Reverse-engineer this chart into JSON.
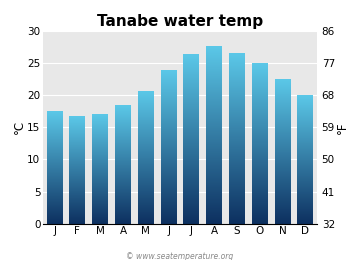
{
  "title": "Tanabe water temp",
  "months": [
    "J",
    "F",
    "M",
    "A",
    "M",
    "J",
    "J",
    "A",
    "S",
    "O",
    "N",
    "D"
  ],
  "values_c": [
    17.5,
    16.7,
    17.1,
    18.5,
    20.7,
    23.9,
    26.4,
    27.7,
    26.6,
    25.0,
    22.6,
    20.0
  ],
  "ylim_c": [
    0,
    30
  ],
  "yticks_c": [
    0,
    5,
    10,
    15,
    20,
    25,
    30
  ],
  "yticks_f": [
    32,
    41,
    50,
    59,
    68,
    77,
    86
  ],
  "ylabel_left": "°C",
  "ylabel_right": "°F",
  "watermark": "© www.seatemperature.org",
  "bar_color_top": "#5bc8e8",
  "bar_color_bottom": "#0d3060",
  "background_color": "#ffffff",
  "plot_bg_color": "#e8e8e8",
  "title_fontsize": 11,
  "tick_fontsize": 7.5,
  "label_fontsize": 8.5
}
